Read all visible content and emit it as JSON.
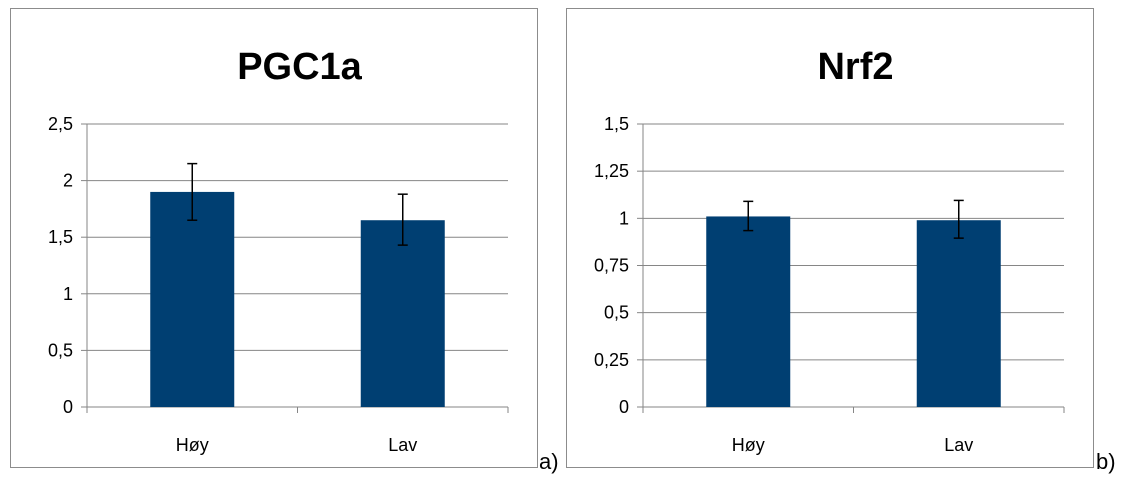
{
  "colors": {
    "bar": "#003F72",
    "grid": "#868686",
    "axis": "#868686",
    "error": "#000000"
  },
  "chart_data": [
    {
      "type": "bar",
      "title": "PGC1a",
      "categories": [
        "Høy",
        "Lav"
      ],
      "values": [
        1.9,
        1.65
      ],
      "error_upper": [
        2.15,
        1.88
      ],
      "error_lower": [
        1.65,
        1.43
      ],
      "ylim": [
        0,
        2.5
      ],
      "yticks": [
        0,
        0.5,
        1,
        1.5,
        2,
        2.5
      ],
      "ytick_labels": [
        "0",
        "0,5",
        "1",
        "1,5",
        "2",
        "2,5"
      ],
      "grid": true,
      "legend": "none",
      "panel_label": "a)"
    },
    {
      "type": "bar",
      "title": "Nrf2",
      "categories": [
        "Høy",
        "Lav"
      ],
      "values": [
        1.01,
        0.99
      ],
      "error_upper": [
        1.09,
        1.095
      ],
      "error_lower": [
        0.935,
        0.895
      ],
      "ylim": [
        0,
        1.5
      ],
      "yticks": [
        0,
        0.25,
        0.5,
        0.75,
        1,
        1.25,
        1.5
      ],
      "ytick_labels": [
        "0",
        "0,25",
        "0,5",
        "0,75",
        "1",
        "1,25",
        "1,5"
      ],
      "grid": true,
      "legend": "none",
      "panel_label": "b)"
    }
  ]
}
